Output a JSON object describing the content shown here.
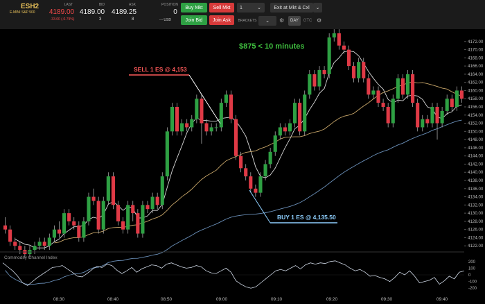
{
  "toolbar": {
    "symbol": "ESH2",
    "symbol_desc": "E-MINI S&P 500",
    "last_header": "LAST",
    "last_value": "4189.00",
    "last_change": "-33.00 (-0.79%)",
    "bid_header": "BID",
    "bid_value": "4189.00",
    "bid_size": "3",
    "ask_header": "ASK",
    "ask_value": "4189.25",
    "ask_size": "8",
    "position_header": "POSITION",
    "position_value": "0",
    "position_usd": "--- USD",
    "buy_mkt": "Buy Mkt",
    "sell_mkt": "Sell Mkt",
    "join_bid": "Join Bid",
    "join_ask": "Join Ask",
    "quantity": "1",
    "exit_label": "Exit at Mkt & Cxl",
    "brackets_label": "BRACKETS",
    "day_label": "DAY",
    "gtc_label": "GTC",
    "colors": {
      "accent_gold": "#e8c15a",
      "buy": "#2ea043",
      "sell": "#d73a3a",
      "loss": "#f04848"
    }
  },
  "annotations": {
    "profit_text": "$875 < 10 minutes",
    "sell_text": "SELL 1 ES @ 4,153",
    "buy_text": "BUY 1 ES @ 4,135.50",
    "colors": {
      "profit": "#3fbf3f",
      "sell": "#ff5a5a",
      "buy": "#8fd0ff"
    }
  },
  "indicator": {
    "name": "Commodity Channel Index",
    "ticks": [
      "200",
      "100",
      "0",
      "-100",
      "-200"
    ]
  },
  "chart_data": {
    "type": "candlestick",
    "ylim": [
      4120,
      4174
    ],
    "ytick_labels": [
      "4172.00",
      "4170.00",
      "4168.00",
      "4166.00",
      "4164.00",
      "4162.00",
      "4160.00",
      "4158.00",
      "4156.00",
      "4154.00",
      "4152.00",
      "4150.00",
      "4148.00",
      "4146.00",
      "4144.00",
      "4142.00",
      "4140.00",
      "4138.00",
      "4136.00",
      "4134.00",
      "4132.00",
      "4130.00",
      "4128.00",
      "4126.00",
      "4124.00",
      "4122.00"
    ],
    "xtick_labels": [
      "08:30",
      "08:40",
      "08:50",
      "09:00",
      "09:10",
      "09:20",
      "09:30",
      "09:40"
    ],
    "candles": [
      [
        4127,
        4126,
        4129,
        4125
      ],
      [
        4126,
        4123,
        4127,
        4122
      ],
      [
        4123,
        4122,
        4124,
        4121
      ],
      [
        4122,
        4121,
        4123,
        4120
      ],
      [
        4121,
        4120,
        4122,
        4119
      ],
      [
        4120,
        4121,
        4122,
        4119
      ],
      [
        4121,
        4122,
        4123,
        4120
      ],
      [
        4122,
        4123,
        4124,
        4121
      ],
      [
        4123,
        4122,
        4124,
        4121
      ],
      [
        4122,
        4124,
        4125,
        4121
      ],
      [
        4124,
        4126,
        4127,
        4123
      ],
      [
        4126,
        4125,
        4128,
        4124
      ],
      [
        4125,
        4130,
        4131,
        4124
      ],
      [
        4130,
        4128,
        4131,
        4127
      ],
      [
        4128,
        4127,
        4129,
        4126
      ],
      [
        4127,
        4124,
        4128,
        4123
      ],
      [
        4124,
        4128,
        4129,
        4123
      ],
      [
        4128,
        4134,
        4135,
        4127
      ],
      [
        4134,
        4133,
        4136,
        4132
      ],
      [
        4133,
        4126,
        4134,
        4125
      ],
      [
        4126,
        4133,
        4134,
        4125
      ],
      [
        4133,
        4139,
        4140,
        4132
      ],
      [
        4139,
        4132,
        4140,
        4131
      ],
      [
        4132,
        4128,
        4133,
        4127
      ],
      [
        4128,
        4126,
        4129,
        4125
      ],
      [
        4126,
        4132,
        4133,
        4125
      ],
      [
        4132,
        4130,
        4133,
        4128
      ],
      [
        4130,
        4125,
        4131,
        4124
      ],
      [
        4125,
        4132,
        4133,
        4124
      ],
      [
        4132,
        4131,
        4133,
        4130
      ],
      [
        4131,
        4134,
        4135,
        4130
      ],
      [
        4134,
        4132,
        4135,
        4131
      ],
      [
        4132,
        4139,
        4140,
        4131
      ],
      [
        4139,
        4150,
        4151,
        4138
      ],
      [
        4150,
        4156,
        4157,
        4149
      ],
      [
        4156,
        4150,
        4157,
        4149
      ],
      [
        4150,
        4152,
        4153,
        4149
      ],
      [
        4152,
        4151,
        4153,
        4150
      ],
      [
        4151,
        4153,
        4154,
        4150
      ],
      [
        4153,
        4158,
        4159,
        4152
      ],
      [
        4158,
        4152,
        4159,
        4147
      ],
      [
        4152,
        4150,
        4153,
        4149
      ],
      [
        4150,
        4151,
        4152,
        4149
      ],
      [
        4151,
        4151,
        4152,
        4150
      ],
      [
        4151,
        4157,
        4158,
        4150
      ],
      [
        4157,
        4159,
        4160,
        4156
      ],
      [
        4159,
        4153,
        4160,
        4152
      ],
      [
        4153,
        4144,
        4154,
        4143
      ],
      [
        4144,
        4141,
        4145,
        4140
      ],
      [
        4141,
        4139,
        4142,
        4138
      ],
      [
        4139,
        4136,
        4140,
        4135
      ],
      [
        4136,
        4135,
        4137,
        4134
      ],
      [
        4135,
        4139,
        4140,
        4134
      ],
      [
        4139,
        4142,
        4143,
        4138
      ],
      [
        4142,
        4145,
        4146,
        4141
      ],
      [
        4145,
        4149,
        4150,
        4144
      ],
      [
        4149,
        4151,
        4152,
        4148
      ],
      [
        4151,
        4150,
        4152,
        4149
      ],
      [
        4150,
        4152,
        4153,
        4149
      ],
      [
        4152,
        4157,
        4158,
        4151
      ],
      [
        4157,
        4150,
        4158,
        4149
      ],
      [
        4150,
        4159,
        4160,
        4149
      ],
      [
        4159,
        4164,
        4165,
        4158
      ],
      [
        4164,
        4161,
        4165,
        4160
      ],
      [
        4161,
        4165,
        4166,
        4160
      ],
      [
        4165,
        4164,
        4166,
        4163
      ],
      [
        4164,
        4173,
        4174,
        4163
      ],
      [
        4173,
        4174,
        4175,
        4172
      ],
      [
        4174,
        4171,
        4175,
        4170
      ],
      [
        4171,
        4170,
        4172,
        4169
      ],
      [
        4170,
        4166,
        4171,
        4165
      ],
      [
        4166,
        4163,
        4167,
        4162
      ],
      [
        4163,
        4167,
        4168,
        4162
      ],
      [
        4167,
        4163,
        4168,
        4162
      ],
      [
        4163,
        4159,
        4164,
        4158
      ],
      [
        4159,
        4160,
        4161,
        4158
      ],
      [
        4160,
        4157,
        4161,
        4156
      ],
      [
        4157,
        4156,
        4158,
        4155
      ],
      [
        4156,
        4152,
        4157,
        4151
      ],
      [
        4152,
        4158,
        4159,
        4151
      ],
      [
        4158,
        4163,
        4164,
        4157
      ],
      [
        4163,
        4159,
        4164,
        4158
      ],
      [
        4159,
        4164,
        4165,
        4158
      ],
      [
        4164,
        4157,
        4165,
        4156
      ],
      [
        4157,
        4151,
        4158,
        4150
      ],
      [
        4151,
        4153,
        4154,
        4150
      ],
      [
        4153,
        4152,
        4154,
        4151
      ],
      [
        4152,
        4156,
        4157,
        4151
      ],
      [
        4156,
        4152,
        4157,
        4148
      ],
      [
        4152,
        4155,
        4156,
        4151
      ],
      [
        4155,
        4158,
        4159,
        4154
      ],
      [
        4158,
        4156,
        4159,
        4155
      ],
      [
        4156,
        4160,
        4161,
        4155
      ],
      [
        4160,
        4158,
        4161,
        4157
      ]
    ],
    "cci": [
      180,
      120,
      60,
      -20,
      -120,
      -160,
      -100,
      -40,
      10,
      60,
      110,
      120,
      140,
      90,
      40,
      -20,
      -30,
      20,
      80,
      130,
      110,
      160,
      140,
      70,
      20,
      60,
      110,
      40,
      90,
      120,
      150,
      140,
      100,
      160,
      180,
      150,
      120,
      100,
      110,
      140,
      120,
      60,
      30,
      20,
      60,
      100,
      40,
      -90,
      -140,
      -180,
      -200,
      -180,
      -120,
      -60,
      0,
      60,
      80,
      60,
      100,
      140,
      90,
      150,
      180,
      160,
      180,
      170,
      200,
      210,
      180,
      150,
      100,
      60,
      80,
      40,
      -20,
      -10,
      -40,
      -60,
      -100,
      -40,
      40,
      0,
      60,
      -20,
      -120,
      -100,
      -80,
      -40,
      -140,
      -90,
      -20,
      -60,
      40,
      60
    ],
    "ma_fast_label": "",
    "ma_slow_label": "",
    "ma_long_label": ""
  }
}
